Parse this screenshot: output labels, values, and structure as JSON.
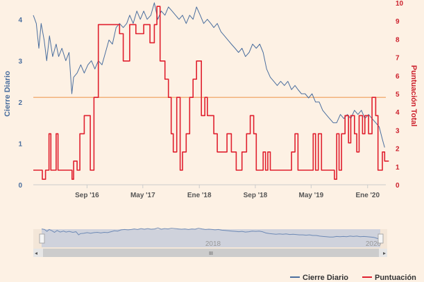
{
  "chart_data": {
    "type": "line",
    "title": "",
    "x_range": [
      "2016-01-12",
      "2020-03-20"
    ],
    "x_ticks": [
      {
        "date": "2016-09-01",
        "label": "Sep '16"
      },
      {
        "date": "2017-05-01",
        "label": "May '17"
      },
      {
        "date": "2018-01-01",
        "label": "Ene '18"
      },
      {
        "date": "2018-09-01",
        "label": "Sep '18"
      },
      {
        "date": "2019-05-01",
        "label": "May '19"
      },
      {
        "date": "2020-01-01",
        "label": "Ene '20"
      }
    ],
    "y_left": {
      "label": "Cierre Diario",
      "min": 0,
      "max": 4.4,
      "ticks": [
        0,
        1,
        2,
        3,
        4
      ]
    },
    "y_right": {
      "label": "Puntuación Total",
      "min": 0,
      "max": 10,
      "ticks": [
        0,
        1,
        2,
        3,
        4,
        5,
        6,
        7,
        8,
        9,
        10
      ]
    },
    "reference_line": {
      "axis": "right",
      "value": 4.8,
      "color": "#f2b27a"
    },
    "legend_position": "bottom-right",
    "series": [
      {
        "name": "Cierre Diario",
        "axis": "left",
        "color": "#4a6e9e",
        "points": [
          [
            "2016-01-12",
            4.1
          ],
          [
            "2016-01-25",
            3.9
          ],
          [
            "2016-02-05",
            3.3
          ],
          [
            "2016-02-15",
            3.9
          ],
          [
            "2016-02-28",
            3.5
          ],
          [
            "2016-03-10",
            3.0
          ],
          [
            "2016-03-22",
            3.6
          ],
          [
            "2016-04-05",
            3.1
          ],
          [
            "2016-04-20",
            3.4
          ],
          [
            "2016-05-01",
            3.1
          ],
          [
            "2016-05-15",
            3.3
          ],
          [
            "2016-06-01",
            3.0
          ],
          [
            "2016-06-15",
            3.2
          ],
          [
            "2016-06-27",
            2.2
          ],
          [
            "2016-07-05",
            2.6
          ],
          [
            "2016-07-20",
            2.7
          ],
          [
            "2016-08-05",
            2.9
          ],
          [
            "2016-08-20",
            2.7
          ],
          [
            "2016-09-05",
            2.9
          ],
          [
            "2016-09-20",
            3.0
          ],
          [
            "2016-10-05",
            2.8
          ],
          [
            "2016-10-20",
            3.0
          ],
          [
            "2016-11-05",
            2.9
          ],
          [
            "2016-11-20",
            3.2
          ],
          [
            "2016-12-05",
            3.5
          ],
          [
            "2016-12-20",
            3.4
          ],
          [
            "2017-01-05",
            3.8
          ],
          [
            "2017-01-20",
            3.9
          ],
          [
            "2017-02-05",
            3.8
          ],
          [
            "2017-02-20",
            3.9
          ],
          [
            "2017-03-05",
            4.1
          ],
          [
            "2017-03-20",
            3.9
          ],
          [
            "2017-04-05",
            4.2
          ],
          [
            "2017-04-20",
            4.0
          ],
          [
            "2017-05-05",
            4.2
          ],
          [
            "2017-05-20",
            4.0
          ],
          [
            "2017-06-05",
            4.1
          ],
          [
            "2017-06-20",
            4.4
          ],
          [
            "2017-07-05",
            4.0
          ],
          [
            "2017-07-20",
            4.2
          ],
          [
            "2017-08-05",
            4.1
          ],
          [
            "2017-08-20",
            4.3
          ],
          [
            "2017-09-05",
            4.2
          ],
          [
            "2017-09-20",
            4.1
          ],
          [
            "2017-10-05",
            4.0
          ],
          [
            "2017-10-20",
            4.1
          ],
          [
            "2017-11-05",
            3.9
          ],
          [
            "2017-11-20",
            4.1
          ],
          [
            "2017-12-05",
            4.0
          ],
          [
            "2017-12-20",
            4.3
          ],
          [
            "2018-01-05",
            4.1
          ],
          [
            "2018-01-20",
            3.9
          ],
          [
            "2018-02-05",
            4.0
          ],
          [
            "2018-02-20",
            3.9
          ],
          [
            "2018-03-05",
            3.8
          ],
          [
            "2018-03-20",
            3.9
          ],
          [
            "2018-04-05",
            3.7
          ],
          [
            "2018-04-20",
            3.6
          ],
          [
            "2018-05-05",
            3.5
          ],
          [
            "2018-05-20",
            3.4
          ],
          [
            "2018-06-05",
            3.3
          ],
          [
            "2018-06-20",
            3.2
          ],
          [
            "2018-07-05",
            3.3
          ],
          [
            "2018-07-20",
            3.1
          ],
          [
            "2018-08-05",
            3.2
          ],
          [
            "2018-08-20",
            3.4
          ],
          [
            "2018-09-05",
            3.3
          ],
          [
            "2018-09-20",
            3.4
          ],
          [
            "2018-10-05",
            3.2
          ],
          [
            "2018-10-20",
            2.8
          ],
          [
            "2018-11-05",
            2.6
          ],
          [
            "2018-11-20",
            2.5
          ],
          [
            "2018-12-05",
            2.4
          ],
          [
            "2018-12-20",
            2.5
          ],
          [
            "2019-01-05",
            2.4
          ],
          [
            "2019-01-20",
            2.5
          ],
          [
            "2019-02-05",
            2.3
          ],
          [
            "2019-02-20",
            2.4
          ],
          [
            "2019-03-05",
            2.3
          ],
          [
            "2019-03-20",
            2.2
          ],
          [
            "2019-04-05",
            2.2
          ],
          [
            "2019-04-20",
            2.1
          ],
          [
            "2019-05-05",
            2.2
          ],
          [
            "2019-05-20",
            2.0
          ],
          [
            "2019-06-05",
            2.0
          ],
          [
            "2019-06-20",
            1.8
          ],
          [
            "2019-07-05",
            1.7
          ],
          [
            "2019-07-20",
            1.6
          ],
          [
            "2019-08-05",
            1.5
          ],
          [
            "2019-08-20",
            1.5
          ],
          [
            "2019-09-05",
            1.7
          ],
          [
            "2019-09-20",
            1.6
          ],
          [
            "2019-10-05",
            1.7
          ],
          [
            "2019-10-20",
            1.6
          ],
          [
            "2019-11-05",
            1.8
          ],
          [
            "2019-11-20",
            1.7
          ],
          [
            "2019-12-05",
            1.8
          ],
          [
            "2019-12-20",
            1.6
          ],
          [
            "2020-01-05",
            1.7
          ],
          [
            "2020-01-20",
            1.6
          ],
          [
            "2020-02-05",
            1.5
          ],
          [
            "2020-02-20",
            1.4
          ],
          [
            "2020-03-05",
            1.1
          ],
          [
            "2020-03-15",
            0.9
          ]
        ]
      },
      {
        "name": "Puntuación",
        "axis": "right",
        "color": "#e01f2d",
        "step": true,
        "points": [
          [
            "2016-01-12",
            0.8
          ],
          [
            "2016-02-20",
            0.3
          ],
          [
            "2016-03-05",
            0.8
          ],
          [
            "2016-03-20",
            2.8
          ],
          [
            "2016-03-28",
            0.8
          ],
          [
            "2016-04-20",
            2.8
          ],
          [
            "2016-04-28",
            0.8
          ],
          [
            "2016-06-28",
            0.3
          ],
          [
            "2016-07-05",
            1.3
          ],
          [
            "2016-07-20",
            0.8
          ],
          [
            "2016-08-01",
            2.8
          ],
          [
            "2016-08-20",
            3.8
          ],
          [
            "2016-09-15",
            0.8
          ],
          [
            "2016-10-01",
            4.8
          ],
          [
            "2016-10-20",
            8.8
          ],
          [
            "2017-01-20",
            8.3
          ],
          [
            "2017-02-05",
            6.8
          ],
          [
            "2017-03-05",
            8.8
          ],
          [
            "2017-04-01",
            8.3
          ],
          [
            "2017-05-05",
            8.8
          ],
          [
            "2017-06-01",
            7.8
          ],
          [
            "2017-06-20",
            8.8
          ],
          [
            "2017-07-01",
            9.8
          ],
          [
            "2017-07-15",
            6.8
          ],
          [
            "2017-08-05",
            5.8
          ],
          [
            "2017-08-20",
            4.8
          ],
          [
            "2017-09-01",
            2.8
          ],
          [
            "2017-09-10",
            1.8
          ],
          [
            "2017-09-25",
            4.8
          ],
          [
            "2017-10-10",
            0.8
          ],
          [
            "2017-10-20",
            1.8
          ],
          [
            "2017-11-05",
            2.8
          ],
          [
            "2017-11-20",
            4.8
          ],
          [
            "2017-12-05",
            5.8
          ],
          [
            "2017-12-20",
            6.8
          ],
          [
            "2018-01-10",
            3.8
          ],
          [
            "2018-01-25",
            4.8
          ],
          [
            "2018-02-05",
            3.8
          ],
          [
            "2018-03-05",
            2.8
          ],
          [
            "2018-03-20",
            1.8
          ],
          [
            "2018-04-05",
            1.8
          ],
          [
            "2018-05-01",
            2.8
          ],
          [
            "2018-05-20",
            1.8
          ],
          [
            "2018-06-10",
            0.8
          ],
          [
            "2018-07-05",
            1.8
          ],
          [
            "2018-07-25",
            2.8
          ],
          [
            "2018-08-10",
            3.8
          ],
          [
            "2018-08-25",
            2.8
          ],
          [
            "2018-09-05",
            0.8
          ],
          [
            "2018-10-05",
            1.8
          ],
          [
            "2018-10-15",
            0.8
          ],
          [
            "2018-10-25",
            1.8
          ],
          [
            "2018-11-05",
            0.8
          ],
          [
            "2018-12-01",
            0.8
          ],
          [
            "2019-01-05",
            0.8
          ],
          [
            "2019-02-05",
            1.8
          ],
          [
            "2019-02-20",
            2.8
          ],
          [
            "2019-03-05",
            0.8
          ],
          [
            "2019-04-05",
            0.8
          ],
          [
            "2019-05-10",
            2.8
          ],
          [
            "2019-05-20",
            0.8
          ],
          [
            "2019-06-01",
            2.8
          ],
          [
            "2019-06-15",
            0.8
          ],
          [
            "2019-08-10",
            0.3
          ],
          [
            "2019-08-20",
            2.8
          ],
          [
            "2019-08-30",
            0.8
          ],
          [
            "2019-09-10",
            2.8
          ],
          [
            "2019-09-25",
            3.8
          ],
          [
            "2019-10-10",
            2.3
          ],
          [
            "2019-10-20",
            3.8
          ],
          [
            "2019-11-05",
            2.8
          ],
          [
            "2019-11-15",
            1.8
          ],
          [
            "2019-11-25",
            3.8
          ],
          [
            "2019-12-10",
            2.8
          ],
          [
            "2019-12-20",
            3.8
          ],
          [
            "2020-01-05",
            2.8
          ],
          [
            "2020-01-20",
            4.8
          ],
          [
            "2020-02-05",
            3.8
          ],
          [
            "2020-02-15",
            0.8
          ],
          [
            "2020-03-05",
            1.8
          ],
          [
            "2020-03-15",
            1.3
          ]
        ]
      }
    ]
  },
  "navigator": {
    "label_1": "2018",
    "label_2": "2020",
    "scroll_grip": "III"
  }
}
